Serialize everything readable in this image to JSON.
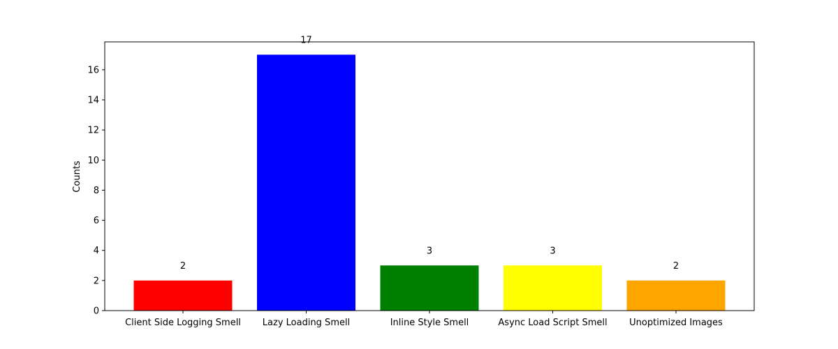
{
  "chart_data": {
    "type": "bar",
    "title": "",
    "xlabel": "",
    "ylabel": "Counts",
    "categories": [
      "Client Side Logging Smell",
      "Lazy Loading Smell",
      "Inline Style Smell",
      "Async Load Script Smell",
      "Unoptimized Images"
    ],
    "values": [
      2,
      17,
      3,
      3,
      2
    ],
    "colors": [
      "#ff0000",
      "#0000ff",
      "#008000",
      "#ffff00",
      "#ffa500"
    ],
    "ylim": [
      0,
      17.85
    ],
    "yticks": [
      0,
      2,
      4,
      6,
      8,
      10,
      12,
      14,
      16
    ],
    "grid": false,
    "legend": "none"
  }
}
